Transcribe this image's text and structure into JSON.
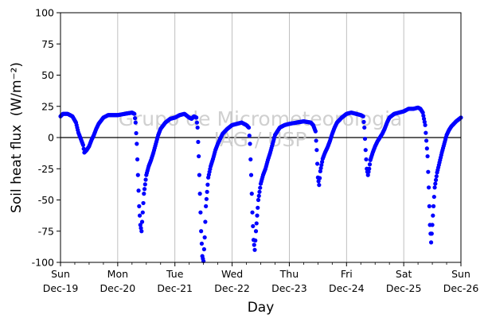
{
  "chart_data": {
    "type": "scatter",
    "xlabel": "Day",
    "ylabel": "Soil heat flux",
    "ylabel_unit": "(W/m⁻²)",
    "ylim": [
      -100,
      100
    ],
    "xlim": [
      "2021-12-19",
      "2021-12-26"
    ],
    "yticks": [
      -100,
      -75,
      -50,
      -25,
      0,
      25,
      50,
      75,
      100
    ],
    "xticks": [
      {
        "day": "Sun",
        "date": "Dec-19",
        "x": "2021-12-19"
      },
      {
        "day": "Mon",
        "date": "Dec-20",
        "x": "2021-12-20"
      },
      {
        "day": "Tue",
        "date": "Dec-21",
        "x": "2021-12-21"
      },
      {
        "day": "Wed",
        "date": "Dec-22",
        "x": "2021-12-22"
      },
      {
        "day": "Thu",
        "date": "Dec-23",
        "x": "2021-12-23"
      },
      {
        "day": "Fri",
        "date": "Dec-24",
        "x": "2021-12-24"
      },
      {
        "day": "Sat",
        "date": "Dec-25",
        "x": "2021-12-25"
      },
      {
        "day": "Sun",
        "date": "Dec-26",
        "x": "2021-12-26"
      }
    ],
    "vertical_grid": true,
    "zero_line": true,
    "watermark": [
      "Grupo de Micrometeorologia",
      "IAG / USP"
    ],
    "series": [
      {
        "color": "#0000ff",
        "marker": "circle",
        "points": [
          {
            "x": "2021-12-19T00:00",
            "y": 17
          },
          {
            "x": "2021-12-19T01:00",
            "y": 19
          },
          {
            "x": "2021-12-19T03:00",
            "y": 19
          },
          {
            "x": "2021-12-19T05:00",
            "y": 17
          },
          {
            "x": "2021-12-19T06:30",
            "y": 12
          },
          {
            "x": "2021-12-19T07:30",
            "y": 4
          },
          {
            "x": "2021-12-19T08:30",
            "y": -1
          },
          {
            "x": "2021-12-19T09:30",
            "y": -6
          },
          {
            "x": "2021-12-19T10:00",
            "y": -12
          },
          {
            "x": "2021-12-19T11:00",
            "y": -10
          },
          {
            "x": "2021-12-19T12:00",
            "y": -7
          },
          {
            "x": "2021-12-19T13:00",
            "y": -2
          },
          {
            "x": "2021-12-19T14:00",
            "y": 2
          },
          {
            "x": "2021-12-19T15:00",
            "y": 7
          },
          {
            "x": "2021-12-19T16:00",
            "y": 11
          },
          {
            "x": "2021-12-19T18:00",
            "y": 16
          },
          {
            "x": "2021-12-19T20:00",
            "y": 18
          },
          {
            "x": "2021-12-20T00:00",
            "y": 18
          },
          {
            "x": "2021-12-20T03:00",
            "y": 19
          },
          {
            "x": "2021-12-20T06:00",
            "y": 20
          },
          {
            "x": "2021-12-20T07:00",
            "y": 19
          },
          {
            "x": "2021-12-20T07:30",
            "y": 12
          },
          {
            "x": "2021-12-20T08:00",
            "y": -5
          },
          {
            "x": "2021-12-20T08:30",
            "y": -30
          },
          {
            "x": "2021-12-20T09:00",
            "y": -55
          },
          {
            "x": "2021-12-20T09:30",
            "y": -70
          },
          {
            "x": "2021-12-20T10:00",
            "y": -75
          },
          {
            "x": "2021-12-20T10:30",
            "y": -60
          },
          {
            "x": "2021-12-20T11:00",
            "y": -45
          },
          {
            "x": "2021-12-20T12:00",
            "y": -30
          },
          {
            "x": "2021-12-20T13:00",
            "y": -23
          },
          {
            "x": "2021-12-20T14:00",
            "y": -18
          },
          {
            "x": "2021-12-20T15:00",
            "y": -12
          },
          {
            "x": "2021-12-20T16:00",
            "y": -5
          },
          {
            "x": "2021-12-20T17:00",
            "y": 2
          },
          {
            "x": "2021-12-20T18:00",
            "y": 7
          },
          {
            "x": "2021-12-20T20:00",
            "y": 12
          },
          {
            "x": "2021-12-20T22:00",
            "y": 15
          },
          {
            "x": "2021-12-21T00:00",
            "y": 16
          },
          {
            "x": "2021-12-21T02:00",
            "y": 18
          },
          {
            "x": "2021-12-21T04:00",
            "y": 19
          },
          {
            "x": "2021-12-21T06:00",
            "y": 16
          },
          {
            "x": "2021-12-21T07:00",
            "y": 15
          },
          {
            "x": "2021-12-21T08:00",
            "y": 17
          },
          {
            "x": "2021-12-21T09:00",
            "y": 16
          },
          {
            "x": "2021-12-21T09:30",
            "y": 8
          },
          {
            "x": "2021-12-21T10:00",
            "y": -15
          },
          {
            "x": "2021-12-21T10:30",
            "y": -45
          },
          {
            "x": "2021-12-21T11:00",
            "y": -75
          },
          {
            "x": "2021-12-21T11:30",
            "y": -95
          },
          {
            "x": "2021-12-21T12:00",
            "y": -99
          },
          {
            "x": "2021-12-21T12:30",
            "y": -80
          },
          {
            "x": "2021-12-21T13:00",
            "y": -55
          },
          {
            "x": "2021-12-21T14:00",
            "y": -32
          },
          {
            "x": "2021-12-21T15:00",
            "y": -23
          },
          {
            "x": "2021-12-21T16:00",
            "y": -17
          },
          {
            "x": "2021-12-21T17:00",
            "y": -10
          },
          {
            "x": "2021-12-21T18:00",
            "y": -5
          },
          {
            "x": "2021-12-21T19:00",
            "y": -1
          },
          {
            "x": "2021-12-21T20:00",
            "y": 3
          },
          {
            "x": "2021-12-21T22:00",
            "y": 7
          },
          {
            "x": "2021-12-22T00:00",
            "y": 10
          },
          {
            "x": "2021-12-22T02:00",
            "y": 11
          },
          {
            "x": "2021-12-22T04:00",
            "y": 12
          },
          {
            "x": "2021-12-22T06:00",
            "y": 10
          },
          {
            "x": "2021-12-22T07:00",
            "y": 8
          },
          {
            "x": "2021-12-22T07:30",
            "y": -5
          },
          {
            "x": "2021-12-22T08:00",
            "y": -30
          },
          {
            "x": "2021-12-22T08:30",
            "y": -60
          },
          {
            "x": "2021-12-22T09:00",
            "y": -82
          },
          {
            "x": "2021-12-22T09:30",
            "y": -90
          },
          {
            "x": "2021-12-22T10:00",
            "y": -75
          },
          {
            "x": "2021-12-22T11:00",
            "y": -50
          },
          {
            "x": "2021-12-22T12:00",
            "y": -37
          },
          {
            "x": "2021-12-22T13:00",
            "y": -30
          },
          {
            "x": "2021-12-22T14:00",
            "y": -25
          },
          {
            "x": "2021-12-22T15:00",
            "y": -18
          },
          {
            "x": "2021-12-22T16:00",
            "y": -12
          },
          {
            "x": "2021-12-22T17:00",
            "y": -5
          },
          {
            "x": "2021-12-22T18:00",
            "y": 2
          },
          {
            "x": "2021-12-22T20:00",
            "y": 8
          },
          {
            "x": "2021-12-22T22:00",
            "y": 10
          },
          {
            "x": "2021-12-23T00:00",
            "y": 11
          },
          {
            "x": "2021-12-23T03:00",
            "y": 12
          },
          {
            "x": "2021-12-23T06:00",
            "y": 13
          },
          {
            "x": "2021-12-23T09:00",
            "y": 12
          },
          {
            "x": "2021-12-23T10:00",
            "y": 10
          },
          {
            "x": "2021-12-23T11:00",
            "y": 5
          },
          {
            "x": "2021-12-23T11:30",
            "y": -10
          },
          {
            "x": "2021-12-23T12:00",
            "y": -32
          },
          {
            "x": "2021-12-23T12:30",
            "y": -38
          },
          {
            "x": "2021-12-23T13:00",
            "y": -27
          },
          {
            "x": "2021-12-23T14:00",
            "y": -17
          },
          {
            "x": "2021-12-23T15:00",
            "y": -12
          },
          {
            "x": "2021-12-23T16:00",
            "y": -8
          },
          {
            "x": "2021-12-23T17:00",
            "y": -3
          },
          {
            "x": "2021-12-23T18:00",
            "y": 3
          },
          {
            "x": "2021-12-23T19:00",
            "y": 8
          },
          {
            "x": "2021-12-23T20:00",
            "y": 12
          },
          {
            "x": "2021-12-23T22:00",
            "y": 16
          },
          {
            "x": "2021-12-24T00:00",
            "y": 19
          },
          {
            "x": "2021-12-24T02:00",
            "y": 20
          },
          {
            "x": "2021-12-24T04:00",
            "y": 19
          },
          {
            "x": "2021-12-24T06:00",
            "y": 18
          },
          {
            "x": "2021-12-24T07:00",
            "y": 17
          },
          {
            "x": "2021-12-24T07:30",
            "y": 8
          },
          {
            "x": "2021-12-24T08:00",
            "y": -10
          },
          {
            "x": "2021-12-24T08:30",
            "y": -25
          },
          {
            "x": "2021-12-24T09:00",
            "y": -30
          },
          {
            "x": "2021-12-24T09:30",
            "y": -25
          },
          {
            "x": "2021-12-24T10:00",
            "y": -18
          },
          {
            "x": "2021-12-24T11:00",
            "y": -12
          },
          {
            "x": "2021-12-24T12:00",
            "y": -7
          },
          {
            "x": "2021-12-24T13:00",
            "y": -3
          },
          {
            "x": "2021-12-24T14:00",
            "y": 0
          },
          {
            "x": "2021-12-24T15:00",
            "y": 3
          },
          {
            "x": "2021-12-24T16:00",
            "y": 7
          },
          {
            "x": "2021-12-24T17:00",
            "y": 12
          },
          {
            "x": "2021-12-24T18:00",
            "y": 16
          },
          {
            "x": "2021-12-24T20:00",
            "y": 19
          },
          {
            "x": "2021-12-24T22:00",
            "y": 20
          },
          {
            "x": "2021-12-25T00:00",
            "y": 21
          },
          {
            "x": "2021-12-25T02:00",
            "y": 23
          },
          {
            "x": "2021-12-25T04:00",
            "y": 23
          },
          {
            "x": "2021-12-25T06:00",
            "y": 24
          },
          {
            "x": "2021-12-25T07:00",
            "y": 23
          },
          {
            "x": "2021-12-25T08:00",
            "y": 20
          },
          {
            "x": "2021-12-25T09:00",
            "y": 10
          },
          {
            "x": "2021-12-25T10:00",
            "y": -15
          },
          {
            "x": "2021-12-25T10:30",
            "y": -40
          },
          {
            "x": "2021-12-25T11:00",
            "y": -70
          },
          {
            "x": "2021-12-25T11:30",
            "y": -84
          },
          {
            "x": "2021-12-25T12:00",
            "y": -70
          },
          {
            "x": "2021-12-25T13:00",
            "y": -40
          },
          {
            "x": "2021-12-25T14:00",
            "y": -28
          },
          {
            "x": "2021-12-25T15:00",
            "y": -20
          },
          {
            "x": "2021-12-25T16:00",
            "y": -12
          },
          {
            "x": "2021-12-25T17:00",
            "y": -5
          },
          {
            "x": "2021-12-25T18:00",
            "y": 2
          },
          {
            "x": "2021-12-25T19:00",
            "y": 6
          },
          {
            "x": "2021-12-25T20:00",
            "y": 9
          },
          {
            "x": "2021-12-25T22:00",
            "y": 13
          },
          {
            "x": "2021-12-26T00:00",
            "y": 16
          }
        ]
      }
    ]
  }
}
